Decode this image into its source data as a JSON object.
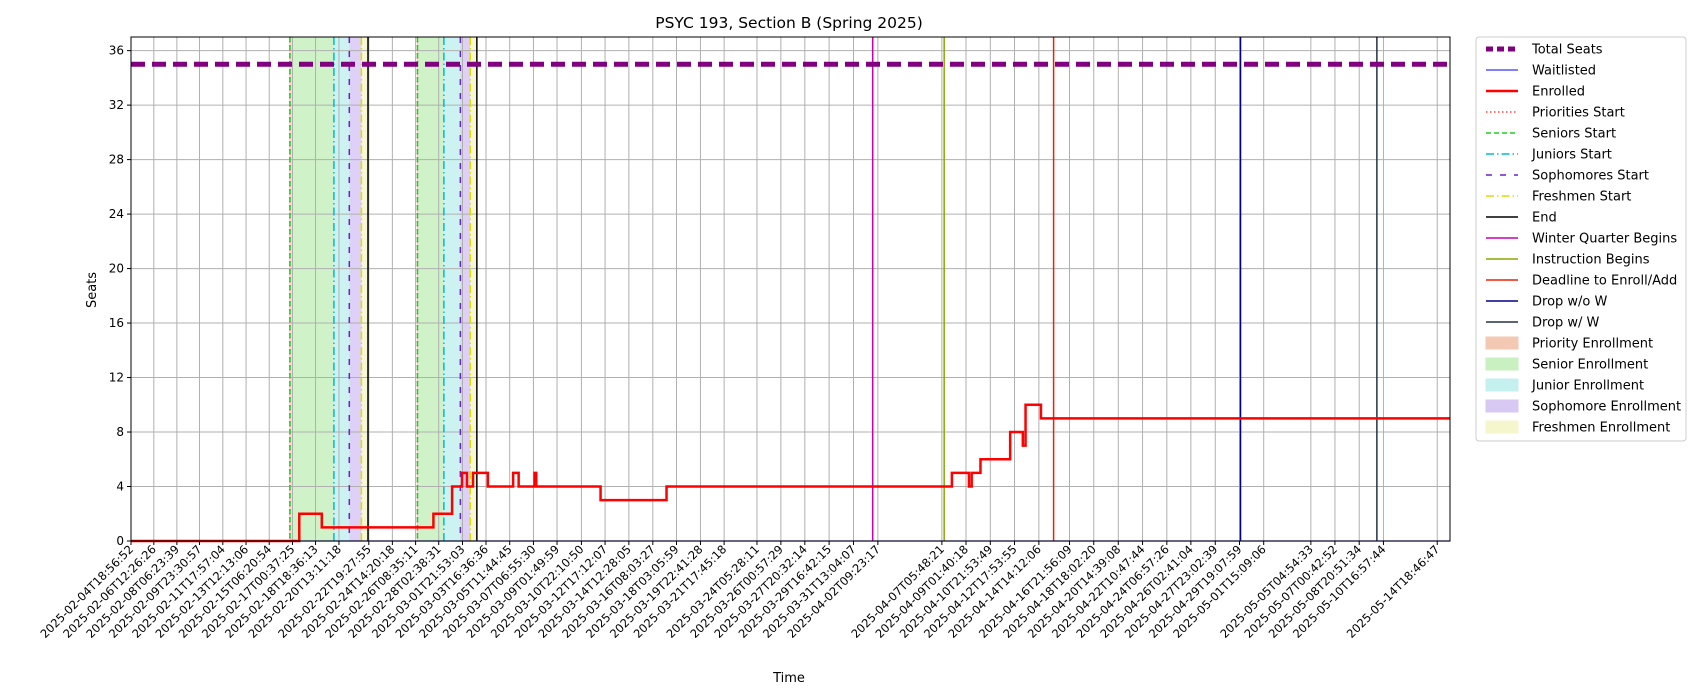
{
  "chart_data": {
    "type": "line",
    "title": "PSYC 193, Section B (Spring 2025)",
    "xlabel": "Time",
    "ylabel": "Seats",
    "ylim": [
      0,
      37
    ],
    "yticks": [
      0,
      4,
      8,
      12,
      16,
      20,
      24,
      28,
      32,
      36
    ],
    "grid": true,
    "legend_placement": "outside-right",
    "x_range": [
      "2025-02-04T18:56:52",
      "2025-05-15T18:00:00"
    ],
    "xticks": [
      "2025-02-04T18:56:52",
      "2025-02-06T12:26:26",
      "2025-02-08T06:23:39",
      "2025-02-09T23:30:57",
      "2025-02-11T17:57:04",
      "2025-02-13T12:13:06",
      "2025-02-15T06:20:54",
      "2025-02-17T00:37:25",
      "2025-02-18T18:36:13",
      "2025-02-20T13:11:18",
      "2025-02-22T19:27:55",
      "2025-02-24T14:20:18",
      "2025-02-26T08:35:11",
      "2025-02-28T02:38:31",
      "2025-03-01T21:53:03",
      "2025-03-03T16:36:36",
      "2025-03-05T11:44:45",
      "2025-03-07T06:55:30",
      "2025-03-09T01:49:59",
      "2025-03-10T22:10:50",
      "2025-03-12T17:12:07",
      "2025-03-14T12:28:05",
      "2025-03-16T08:03:27",
      "2025-03-18T03:05:59",
      "2025-03-19T22:41:28",
      "2025-03-21T17:45:18",
      "2025-03-24T05:28:11",
      "2025-03-26T00:57:29",
      "2025-03-27T20:32:14",
      "2025-03-29T16:42:15",
      "2025-03-31T13:04:07",
      "2025-04-02T09:23:17",
      "2025-04-07T05:48:21",
      "2025-04-09T01:40:18",
      "2025-04-10T21:53:49",
      "2025-04-12T17:53:55",
      "2025-04-14T14:12:06",
      "2025-04-16T21:56:09",
      "2025-04-18T18:02:20",
      "2025-04-20T14:39:08",
      "2025-04-22T10:47:44",
      "2025-04-24T06:57:26",
      "2025-04-26T02:41:04",
      "2025-04-27T23:02:39",
      "2025-04-29T19:07:59",
      "2025-05-01T15:09:06",
      "2025-05-05T04:54:33",
      "2025-05-07T00:42:52",
      "2025-05-08T20:51:34",
      "2025-05-10T16:57:44",
      "2025-05-14T18:46:47"
    ],
    "series": [
      {
        "name": "Total Seats",
        "color": "#800080",
        "style": "dashed-thick",
        "points": [
          [
            "2025-02-04T18:56:52",
            35
          ],
          [
            "2025-05-15T18:00:00",
            35
          ]
        ]
      },
      {
        "name": "Waitlisted",
        "color": "#3333ff",
        "style": "solid-thin",
        "points": [
          [
            "2025-02-04T18:56:52",
            0
          ],
          [
            "2025-05-15T18:00:00",
            0
          ]
        ]
      },
      {
        "name": "Enrolled",
        "color": "#ff0000",
        "style": "step",
        "points": [
          [
            "2025-02-04T18:56:52",
            0
          ],
          [
            "2025-02-17T13:00:00",
            0
          ],
          [
            "2025-02-17T13:00:00",
            2
          ],
          [
            "2025-02-19T06:00:00",
            2
          ],
          [
            "2025-02-19T06:00:00",
            1
          ],
          [
            "2025-02-27T17:00:00",
            1
          ],
          [
            "2025-02-27T17:00:00",
            2
          ],
          [
            "2025-03-01T03:00:00",
            2
          ],
          [
            "2025-03-01T03:00:00",
            4
          ],
          [
            "2025-03-01T21:00:00",
            4
          ],
          [
            "2025-03-01T21:00:00",
            5
          ],
          [
            "2025-03-02T06:00:00",
            5
          ],
          [
            "2025-03-02T06:00:00",
            4
          ],
          [
            "2025-03-02T17:00:00",
            4
          ],
          [
            "2025-03-02T17:00:00",
            5
          ],
          [
            "2025-03-03T20:00:00",
            5
          ],
          [
            "2025-03-03T20:00:00",
            4
          ],
          [
            "2025-03-05T18:00:00",
            4
          ],
          [
            "2025-03-05T18:00:00",
            5
          ],
          [
            "2025-03-06T04:00:00",
            5
          ],
          [
            "2025-03-06T04:00:00",
            4
          ],
          [
            "2025-03-07T09:00:00",
            4
          ],
          [
            "2025-03-07T09:00:00",
            5
          ],
          [
            "2025-03-07T12:00:00",
            5
          ],
          [
            "2025-03-07T12:00:00",
            4
          ],
          [
            "2025-03-12T09:00:00",
            4
          ],
          [
            "2025-03-12T09:00:00",
            3
          ],
          [
            "2025-03-17T09:00:00",
            3
          ],
          [
            "2025-03-17T09:00:00",
            4
          ],
          [
            "2025-04-08T00:00:00",
            4
          ],
          [
            "2025-04-08T00:00:00",
            5
          ],
          [
            "2025-04-09T07:00:00",
            5
          ],
          [
            "2025-04-09T07:00:00",
            4
          ],
          [
            "2025-04-09T12:00:00",
            4
          ],
          [
            "2025-04-09T12:00:00",
            5
          ],
          [
            "2025-04-10T04:00:00",
            5
          ],
          [
            "2025-04-10T04:00:00",
            6
          ],
          [
            "2025-04-12T10:00:00",
            6
          ],
          [
            "2025-04-12T10:00:00",
            8
          ],
          [
            "2025-04-13T09:00:00",
            8
          ],
          [
            "2025-04-13T09:00:00",
            7
          ],
          [
            "2025-04-13T14:00:00",
            7
          ],
          [
            "2025-04-13T14:00:00",
            10
          ],
          [
            "2025-04-14T18:00:00",
            10
          ],
          [
            "2025-04-14T18:00:00",
            9
          ],
          [
            "2025-05-15T18:00:00",
            9
          ]
        ]
      }
    ],
    "event_lines": [
      {
        "name": "Priorities Start",
        "color": "#ff4444",
        "style": "dotted",
        "x": [
          "2025-02-16T20:00:00",
          "2025-02-26T12:00:00"
        ]
      },
      {
        "name": "Seniors Start",
        "color": "#22cc22",
        "style": "dashed",
        "x": [
          "2025-02-16T20:00:00",
          "2025-02-26T12:00:00"
        ]
      },
      {
        "name": "Juniors Start",
        "color": "#00bbcc",
        "style": "dashdot",
        "x": [
          "2025-02-20T04:00:00",
          "2025-02-28T12:00:00"
        ]
      },
      {
        "name": "Sophomores Start",
        "color": "#6622cc",
        "style": "sparse-dash",
        "x": [
          "2025-02-21T08:00:00",
          "2025-03-01T18:00:00"
        ]
      },
      {
        "name": "Freshmen Start",
        "color": "#dddd00",
        "style": "dashdot",
        "x": [
          "2025-02-22T06:00:00",
          "2025-03-02T12:00:00"
        ]
      },
      {
        "name": "End",
        "color": "#000000",
        "style": "solid",
        "x": [
          "2025-02-22T18:00:00",
          "2025-03-03T00:00:00"
        ]
      },
      {
        "name": "Winter Quarter Begins",
        "color": "#cc00aa",
        "style": "solid",
        "x": [
          "2025-04-02T00:00:00"
        ]
      },
      {
        "name": "Instruction Begins",
        "color": "#88aa00",
        "style": "solid",
        "x": [
          "2025-04-07T10:00:00"
        ]
      },
      {
        "name": "Deadline to Enroll/Add",
        "color": "#ee2200",
        "style": "solid",
        "x": [
          "2025-04-15T17:00:00"
        ]
      },
      {
        "name": "Drop w/o W",
        "color": "#000088",
        "style": "solid",
        "x": [
          "2025-04-29T21:00:00"
        ]
      },
      {
        "name": "Drop w/ W",
        "color": "#223344",
        "style": "solid",
        "x": [
          "2025-05-10T05:00:00"
        ]
      }
    ],
    "spans": [
      {
        "name": "Priority Enrollment",
        "color": "#f4c9b4",
        "ranges": [
          [
            "2025-02-16T19:00:00",
            "2025-02-16T21:00:00"
          ],
          [
            "2025-02-26T11:00:00",
            "2025-02-26T13:00:00"
          ]
        ]
      },
      {
        "name": "Senior Enrollment",
        "color": "#c8f0c0",
        "ranges": [
          [
            "2025-02-16T21:00:00",
            "2025-02-20T04:00:00"
          ],
          [
            "2025-02-26T13:00:00",
            "2025-02-28T12:00:00"
          ]
        ]
      },
      {
        "name": "Junior Enrollment",
        "color": "#c4f0f0",
        "ranges": [
          [
            "2025-02-20T04:00:00",
            "2025-02-21T08:00:00"
          ],
          [
            "2025-02-28T12:00:00",
            "2025-03-01T18:00:00"
          ]
        ]
      },
      {
        "name": "Sophomore Enrollment",
        "color": "#d8c8f4",
        "ranges": [
          [
            "2025-02-21T08:00:00",
            "2025-02-22T06:00:00"
          ],
          [
            "2025-03-01T18:00:00",
            "2025-03-02T12:00:00"
          ]
        ]
      },
      {
        "name": "Freshmen Enrollment",
        "color": "#f6f6cc",
        "ranges": [
          [
            "2025-02-22T06:00:00",
            "2025-02-22T18:00:00"
          ],
          [
            "2025-03-02T12:00:00",
            "2025-03-03T00:00:00"
          ]
        ]
      }
    ],
    "legend": [
      {
        "label": "Total Seats",
        "kind": "line",
        "color": "#800080",
        "style": "dashed-thick"
      },
      {
        "label": "Waitlisted",
        "kind": "line",
        "color": "#3333ff",
        "style": "solid-thin"
      },
      {
        "label": "Enrolled",
        "kind": "line",
        "color": "#ff0000",
        "style": "solid-thick"
      },
      {
        "label": "Priorities Start",
        "kind": "line",
        "color": "#ff4444",
        "style": "dotted"
      },
      {
        "label": "Seniors Start",
        "kind": "line",
        "color": "#22cc22",
        "style": "dashed"
      },
      {
        "label": "Juniors Start",
        "kind": "line",
        "color": "#00bbcc",
        "style": "dashdot"
      },
      {
        "label": "Sophomores Start",
        "kind": "line",
        "color": "#6622cc",
        "style": "sparse-dash"
      },
      {
        "label": "Freshmen Start",
        "kind": "line",
        "color": "#dddd00",
        "style": "dashdot"
      },
      {
        "label": "End",
        "kind": "line",
        "color": "#000000",
        "style": "solid"
      },
      {
        "label": "Winter Quarter Begins",
        "kind": "line",
        "color": "#cc00aa",
        "style": "solid"
      },
      {
        "label": "Instruction Begins",
        "kind": "line",
        "color": "#88aa00",
        "style": "solid"
      },
      {
        "label": "Deadline to Enroll/Add",
        "kind": "line",
        "color": "#ee2200",
        "style": "solid"
      },
      {
        "label": "Drop w/o W",
        "kind": "line",
        "color": "#000088",
        "style": "solid"
      },
      {
        "label": "Drop w/ W",
        "kind": "line",
        "color": "#223344",
        "style": "solid"
      },
      {
        "label": "Priority Enrollment",
        "kind": "patch",
        "color": "#f4c9b4"
      },
      {
        "label": "Senior Enrollment",
        "kind": "patch",
        "color": "#c8f0c0"
      },
      {
        "label": "Junior Enrollment",
        "kind": "patch",
        "color": "#c4f0f0"
      },
      {
        "label": "Sophomore Enrollment",
        "kind": "patch",
        "color": "#d8c8f4"
      },
      {
        "label": "Freshmen Enrollment",
        "kind": "patch",
        "color": "#f6f6cc"
      }
    ]
  }
}
